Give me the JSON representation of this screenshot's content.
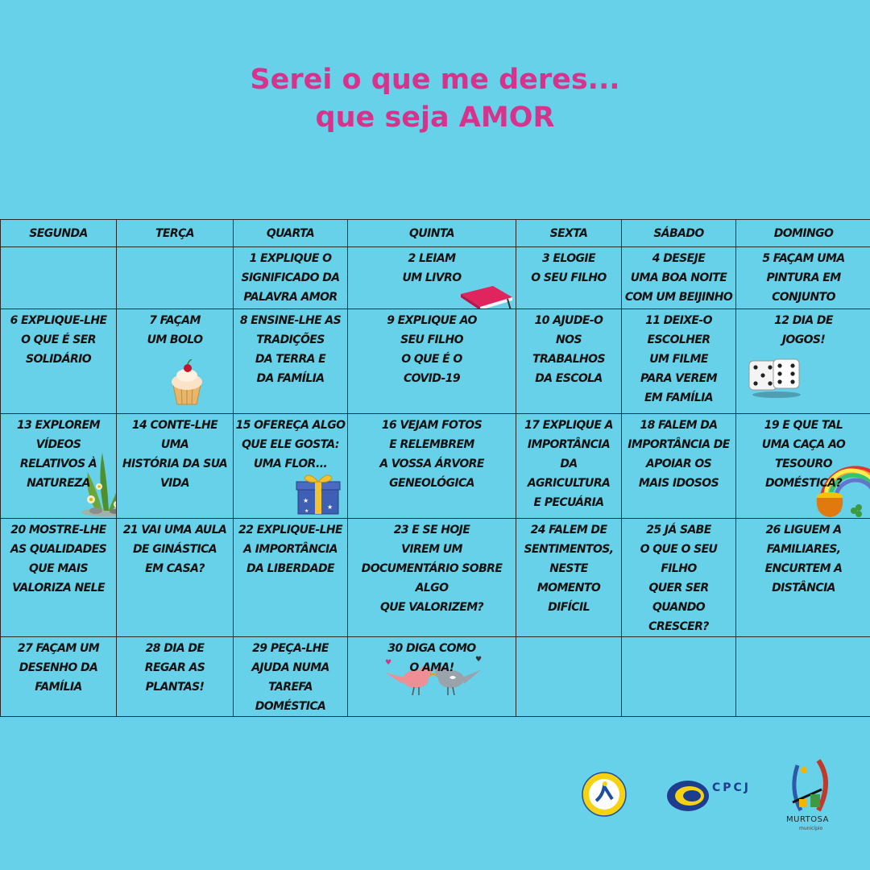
{
  "title": {
    "line1": "Serei o que me deres...",
    "line2": "que seja AMOR"
  },
  "calendar": {
    "headers": [
      "SEGUNDA",
      "TERÇA",
      "QUARTA",
      "QUINTA",
      "SEXTA",
      "SÁBADO",
      "DOMINGO"
    ],
    "weeks": [
      [
        "",
        "",
        "1 Explique o\nsignificado da\npalavra AMOR",
        "2 Leiam\num livro",
        "3 Elogie\no seu filho",
        "4 Deseje\numa boa noite\ncom um beijinho",
        "5 Façam uma\npintura em\nconjunto"
      ],
      [
        "6 Explique-lhe\no  que é ser\nsolidário",
        "7 Façam\num bolo",
        "8 Ensine-lhe as\ntradições\nda terra e\nda família",
        "9 Explique ao\nseu filho\no que é o\ncovid-19",
        "10 Ajude-o\nnos trabalhos\nda escola",
        "11 Deixe-o\nescolher\num filme\npara verem\nem família",
        "12 Dia de\njogos!"
      ],
      [
        "13 Explorem\nvídeos relativos à\nnatureza",
        "14 Conte-lhe uma\nhistória da sua\nvida",
        "15 Ofereça algo\nque ele gosta:\numa flor...",
        "16 Vejam fotos\ne relembrem\na vossa árvore\ngeneológica",
        "17 Explique a\nimportância\nda agricultura\ne pecuária",
        "18 Falem da\nimportância de\napoiar os\nmais idosos",
        "19 E que tal\numa caça ao tesouro\ndoméstica?"
      ],
      [
        "20 Mostre-lhe\nas qualidades\nque mais\nvaloriza nele",
        "21 Vai uma aula\nde ginástica\nem casa?",
        "22 Explique-lhe\na importância\nda liberdade",
        "23 E se hoje\nvirem um\ndocumentário sobre algo\nque valorizem?",
        "24 Falem de\nsentimentos,\nneste momento\ndifícil",
        "25 Já sabe\no que o seu filho\nquer ser\nquando crescer?",
        "26 Liguem a\nfamiliares,\nencurtem a\ndistância"
      ],
      [
        "27 Façam um\ndesenho da\nfamília",
        "28 Dia de\nregar as\nplantas!",
        "29 Peça-lhe\najuda numa\ntarefa doméstica",
        "30 Diga como\no ama!",
        "",
        "",
        ""
      ]
    ]
  },
  "logos": {
    "cpcj": "CPCJ",
    "murtosa": "MURTOSA",
    "murtosa_sub": "município"
  },
  "colors": {
    "background": "#66d1e8",
    "title": "#d6338c",
    "grid": "#2a2a2a"
  }
}
